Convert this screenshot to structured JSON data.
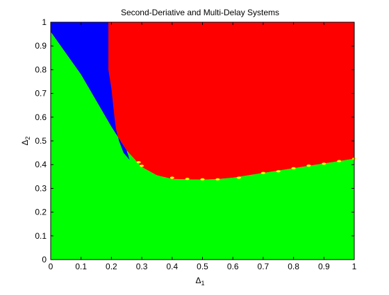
{
  "chart_data": {
    "type": "scatter",
    "title": "Second-Deriative and Multi-Delay Systems",
    "xlabel": "Δ",
    "xlabel_sub": "1",
    "ylabel": "Δ",
    "ylabel_sub": "2",
    "xlim": [
      0,
      1
    ],
    "ylim": [
      0,
      1
    ],
    "xticks": [
      "0",
      "0.1",
      "0.2",
      "0.3",
      "0.4",
      "0.5",
      "0.6",
      "0.7",
      "0.8",
      "0.9",
      "1"
    ],
    "yticks": [
      "0",
      "0.1",
      "0.2",
      "0.3",
      "0.4",
      "0.5",
      "0.6",
      "0.7",
      "0.8",
      "0.9",
      "1"
    ],
    "grid": false,
    "regions": [
      {
        "color": "#00ff00",
        "description": "below stability boundary"
      },
      {
        "color": "#0000ff",
        "description": "upper-left region"
      },
      {
        "color": "#ff0000",
        "description": "upper-right region"
      },
      {
        "color": "#ffff00",
        "description": "boundary points"
      }
    ],
    "boundary": {
      "lower_curve": {
        "x": [
          0.0,
          0.05,
          0.1,
          0.15,
          0.2,
          0.25,
          0.3,
          0.35,
          0.4,
          0.45,
          0.5,
          0.55,
          0.6,
          0.65,
          0.7,
          0.75,
          0.8,
          0.85,
          0.9,
          0.95,
          1.0
        ],
        "y": [
          0.96,
          0.87,
          0.78,
          0.67,
          0.56,
          0.46,
          0.39,
          0.355,
          0.34,
          0.338,
          0.337,
          0.339,
          0.345,
          0.355,
          0.365,
          0.375,
          0.385,
          0.395,
          0.405,
          0.415,
          0.425
        ]
      },
      "blue_red_split_x": [
        0.19,
        0.19,
        0.19,
        0.2,
        0.205,
        0.21,
        0.215,
        0.225,
        0.24,
        0.26
      ],
      "blue_red_split_y": [
        1.0,
        0.9,
        0.8,
        0.72,
        0.66,
        0.6,
        0.55,
        0.5,
        0.45,
        0.42
      ],
      "yellow_x": [
        0.29,
        0.3,
        0.4,
        0.45,
        0.5,
        0.55,
        0.62,
        0.7,
        0.75,
        0.8,
        0.85,
        0.9,
        0.95,
        1.0
      ],
      "yellow_y": [
        0.41,
        0.395,
        0.345,
        0.34,
        0.338,
        0.338,
        0.345,
        0.365,
        0.372,
        0.385,
        0.396,
        0.404,
        0.415,
        0.425
      ]
    },
    "colors": {
      "green": "#00ff00",
      "blue": "#0000ff",
      "red": "#ff0000",
      "yellow": "#ffff00"
    }
  }
}
